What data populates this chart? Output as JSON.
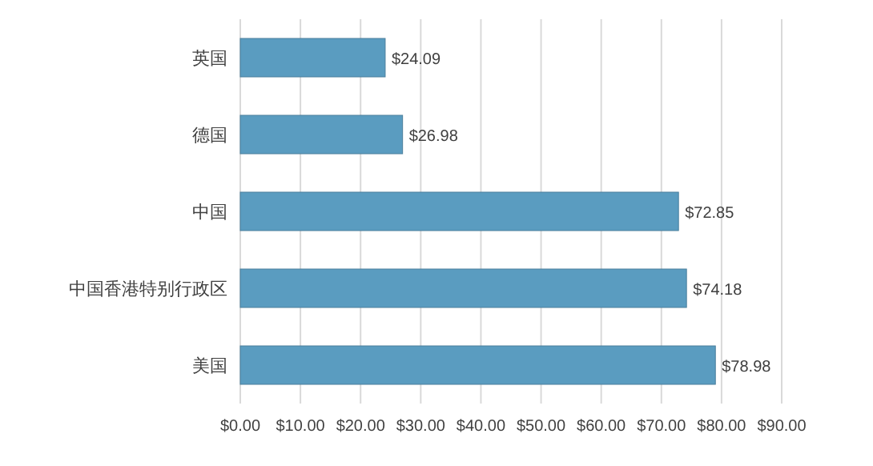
{
  "chart_data": {
    "type": "bar",
    "orientation": "horizontal",
    "categories": [
      "英国",
      "德国",
      "中国",
      "中国香港特别行政区",
      "美国"
    ],
    "values": [
      24.09,
      26.98,
      72.85,
      74.18,
      78.98
    ],
    "value_labels": [
      "$24.09",
      "$26.98",
      "$72.85",
      "$74.18",
      "$78.98"
    ],
    "color": "#5a9cc0",
    "xlim": [
      0,
      90
    ],
    "xticks": [
      {
        "value": 0,
        "label": "$0.00"
      },
      {
        "value": 10,
        "label": "$10.00"
      },
      {
        "value": 20,
        "label": "$20.00"
      },
      {
        "value": 30,
        "label": "$30.00"
      },
      {
        "value": 40,
        "label": "$40.00"
      },
      {
        "value": 50,
        "label": "$50.00"
      },
      {
        "value": 60,
        "label": "$60.00"
      },
      {
        "value": 70,
        "label": "$70.00"
      },
      {
        "value": 80,
        "label": "$80.00"
      },
      {
        "value": 90,
        "label": "$90.00"
      }
    ],
    "grid": "x"
  }
}
